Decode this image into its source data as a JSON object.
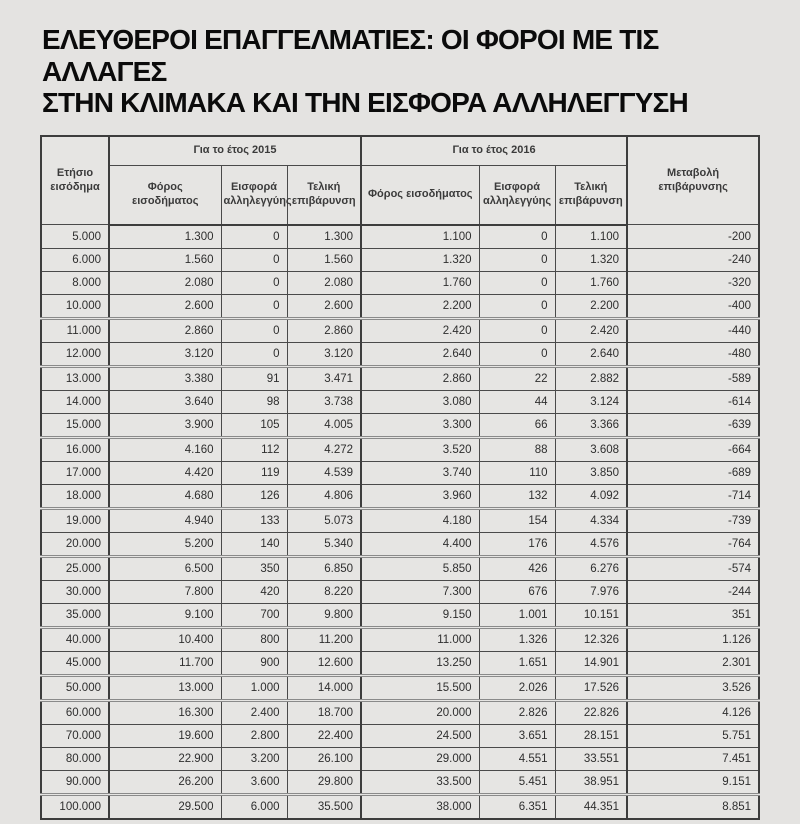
{
  "page": {
    "title_line1": "ΕΛΕΥΘΕΡΟΙ ΕΠΑΓΓΕΛΜΑΤΙΕΣ: ΟΙ ΦΟΡΟΙ ΜΕ ΤΙΣ ΑΛΛΑΓΕΣ",
    "title_line2": "ΣΤΗΝ ΚΛΙΜΑΚΑ ΚΑΙ ΤΗΝ ΕΙΣΦΟΡΑ ΑΛΛΗΛΕΓΓΥΣΗ"
  },
  "colors": {
    "background": "#e4e3e1",
    "grid": "#4a4a4a",
    "text": "#2e2e2e",
    "title": "#0b0b0b"
  },
  "table": {
    "header": {
      "income": "Ετήσιο εισόδημα",
      "group_2015": "Για το έτος 2015",
      "group_2016": "Για το έτος 2016",
      "tax": "Φόρος εισοδήματος",
      "levy": "Εισφορά αλληλεγγύης",
      "final": "Τελική επιβάρυνση",
      "change": "Μεταβολή επιβάρυνσης"
    },
    "rows": [
      [
        "5.000",
        "1.300",
        "0",
        "1.300",
        "1.100",
        "0",
        "1.100",
        "-200"
      ],
      [
        "6.000",
        "1.560",
        "0",
        "1.560",
        "1.320",
        "0",
        "1.320",
        "-240"
      ],
      [
        "8.000",
        "2.080",
        "0",
        "2.080",
        "1.760",
        "0",
        "1.760",
        "-320"
      ],
      [
        "10.000",
        "2.600",
        "0",
        "2.600",
        "2.200",
        "0",
        "2.200",
        "-400"
      ],
      [
        "11.000",
        "2.860",
        "0",
        "2.860",
        "2.420",
        "0",
        "2.420",
        "-440"
      ],
      [
        "12.000",
        "3.120",
        "0",
        "3.120",
        "2.640",
        "0",
        "2.640",
        "-480"
      ],
      [
        "13.000",
        "3.380",
        "91",
        "3.471",
        "2.860",
        "22",
        "2.882",
        "-589"
      ],
      [
        "14.000",
        "3.640",
        "98",
        "3.738",
        "3.080",
        "44",
        "3.124",
        "-614"
      ],
      [
        "15.000",
        "3.900",
        "105",
        "4.005",
        "3.300",
        "66",
        "3.366",
        "-639"
      ],
      [
        "16.000",
        "4.160",
        "112",
        "4.272",
        "3.520",
        "88",
        "3.608",
        "-664"
      ],
      [
        "17.000",
        "4.420",
        "119",
        "4.539",
        "3.740",
        "110",
        "3.850",
        "-689"
      ],
      [
        "18.000",
        "4.680",
        "126",
        "4.806",
        "3.960",
        "132",
        "4.092",
        "-714"
      ],
      [
        "19.000",
        "4.940",
        "133",
        "5.073",
        "4.180",
        "154",
        "4.334",
        "-739"
      ],
      [
        "20.000",
        "5.200",
        "140",
        "5.340",
        "4.400",
        "176",
        "4.576",
        "-764"
      ],
      [
        "25.000",
        "6.500",
        "350",
        "6.850",
        "5.850",
        "426",
        "6.276",
        "-574"
      ],
      [
        "30.000",
        "7.800",
        "420",
        "8.220",
        "7.300",
        "676",
        "7.976",
        "-244"
      ],
      [
        "35.000",
        "9.100",
        "700",
        "9.800",
        "9.150",
        "1.001",
        "10.151",
        "351"
      ],
      [
        "40.000",
        "10.400",
        "800",
        "11.200",
        "11.000",
        "1.326",
        "12.326",
        "1.126"
      ],
      [
        "45.000",
        "11.700",
        "900",
        "12.600",
        "13.250",
        "1.651",
        "14.901",
        "2.301"
      ],
      [
        "50.000",
        "13.000",
        "1.000",
        "14.000",
        "15.500",
        "2.026",
        "17.526",
        "3.526"
      ],
      [
        "60.000",
        "16.300",
        "2.400",
        "18.700",
        "20.000",
        "2.826",
        "22.826",
        "4.126"
      ],
      [
        "70.000",
        "19.600",
        "2.800",
        "22.400",
        "24.500",
        "3.651",
        "28.151",
        "5.751"
      ],
      [
        "80.000",
        "22.900",
        "3.200",
        "26.100",
        "29.000",
        "4.551",
        "33.551",
        "7.451"
      ],
      [
        "90.000",
        "26.200",
        "3.600",
        "29.800",
        "33.500",
        "5.451",
        "38.951",
        "9.151"
      ],
      [
        "100.000",
        "29.500",
        "6.000",
        "35.500",
        "38.000",
        "6.351",
        "44.351",
        "8.851"
      ]
    ]
  },
  "chart_data": {
    "type": "table",
    "title": "ΕΛΕΥΘΕΡΟΙ ΕΠΑΓΓΕΛΜΑΤΙΕΣ: ΟΙ ΦΟΡΟΙ ΜΕ ΤΙΣ ΑΛΛΑΓΕΣ ΣΤΗΝ ΚΛΙΜΑΚΑ ΚΑΙ ΤΗΝ ΕΙΣΦΟΡΑ ΑΛΛΗΛΕΓΓΥΣΗ",
    "column_groups": [
      "",
      "Για το έτος 2015",
      "Για το έτος 2015",
      "Για το έτος 2015",
      "Για το έτος 2016",
      "Για το έτος 2016",
      "Για το έτος 2016",
      ""
    ],
    "columns": [
      "Ετήσιο εισόδημα",
      "Φόρος εισοδήματος 2015",
      "Εισφορά αλληλεγγύης 2015",
      "Τελική επιβάρυνση 2015",
      "Φόρος εισοδήματος 2016",
      "Εισφορά αλληλεγγύης 2016",
      "Τελική επιβάρυνση 2016",
      "Μεταβολή επιβάρυνσης"
    ],
    "rows": [
      [
        5000,
        1300,
        0,
        1300,
        1100,
        0,
        1100,
        -200
      ],
      [
        6000,
        1560,
        0,
        1560,
        1320,
        0,
        1320,
        -240
      ],
      [
        8000,
        2080,
        0,
        2080,
        1760,
        0,
        1760,
        -320
      ],
      [
        10000,
        2600,
        0,
        2600,
        2200,
        0,
        2200,
        -400
      ],
      [
        11000,
        2860,
        0,
        2860,
        2420,
        0,
        2420,
        -440
      ],
      [
        12000,
        3120,
        0,
        3120,
        2640,
        0,
        2640,
        -480
      ],
      [
        13000,
        3380,
        91,
        3471,
        2860,
        22,
        2882,
        -589
      ],
      [
        14000,
        3640,
        98,
        3738,
        3080,
        44,
        3124,
        -614
      ],
      [
        15000,
        3900,
        105,
        4005,
        3300,
        66,
        3366,
        -639
      ],
      [
        16000,
        4160,
        112,
        4272,
        3520,
        88,
        3608,
        -664
      ],
      [
        17000,
        4420,
        119,
        4539,
        3740,
        110,
        3850,
        -689
      ],
      [
        18000,
        4680,
        126,
        4806,
        3960,
        132,
        4092,
        -714
      ],
      [
        19000,
        4940,
        133,
        5073,
        4180,
        154,
        4334,
        -739
      ],
      [
        20000,
        5200,
        140,
        5340,
        4400,
        176,
        4576,
        -764
      ],
      [
        25000,
        6500,
        350,
        6850,
        5850,
        426,
        6276,
        -574
      ],
      [
        30000,
        7800,
        420,
        8220,
        7300,
        676,
        7976,
        -244
      ],
      [
        35000,
        9100,
        700,
        9800,
        9150,
        1001,
        10151,
        351
      ],
      [
        40000,
        10400,
        800,
        11200,
        11000,
        1326,
        12326,
        1126
      ],
      [
        45000,
        11700,
        900,
        12600,
        13250,
        1651,
        14901,
        2301
      ],
      [
        50000,
        13000,
        1000,
        14000,
        15500,
        2026,
        17526,
        3526
      ],
      [
        60000,
        16300,
        2400,
        18700,
        20000,
        2826,
        22826,
        4126
      ],
      [
        70000,
        19600,
        2800,
        22400,
        24500,
        3651,
        28151,
        5751
      ],
      [
        80000,
        22900,
        3200,
        26100,
        29000,
        4551,
        33551,
        7451
      ],
      [
        90000,
        26200,
        3600,
        29800,
        33500,
        5451,
        38951,
        9151
      ],
      [
        100000,
        29500,
        6000,
        35500,
        38000,
        6351,
        44351,
        8851
      ]
    ]
  }
}
